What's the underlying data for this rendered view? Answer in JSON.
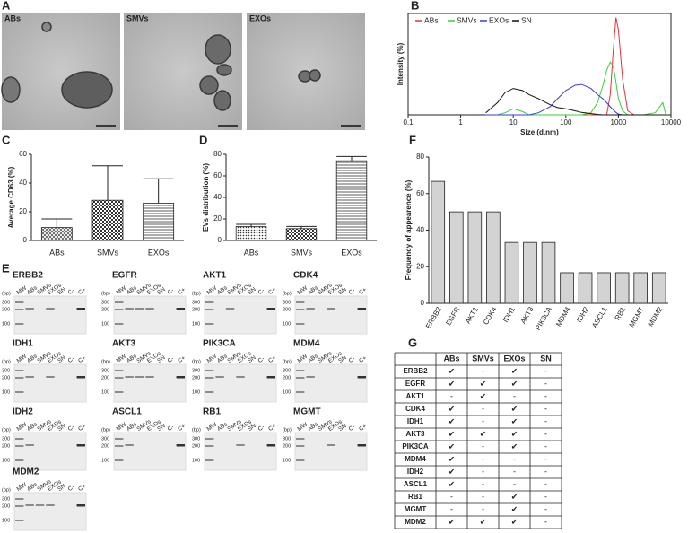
{
  "micrographs": {
    "panel": "A",
    "labels": [
      "ABs",
      "SMVs",
      "EXOs"
    ]
  },
  "chart_data": [
    {
      "panel": "B",
      "type": "line",
      "xlabel": "Size (d.nm)",
      "ylabel": "Intensity (%)",
      "log_x": true,
      "xlim": [
        0.1,
        10000
      ],
      "xticks": [
        0.1,
        1,
        10,
        100,
        1000,
        10000
      ],
      "ylim": [
        0,
        25
      ],
      "legend": "top",
      "x": [
        3,
        5,
        7,
        10,
        15,
        20,
        30,
        50,
        70,
        100,
        150,
        200,
        300,
        400,
        500,
        600,
        700,
        800,
        900,
        1000,
        1200,
        1500,
        2000,
        3000,
        5000,
        7000,
        8000
      ],
      "series": [
        {
          "name": "ABs",
          "color": "#e8303a",
          "values": [
            0,
            0,
            0,
            0,
            0,
            0,
            0,
            0,
            0,
            0,
            0,
            0,
            0,
            0,
            0,
            0,
            5,
            16,
            24,
            21,
            9,
            1,
            0,
            0,
            0,
            0,
            0
          ]
        },
        {
          "name": "SMVs",
          "color": "#35d035",
          "values": [
            0,
            0,
            0.5,
            1.5,
            0.8,
            0,
            0,
            0,
            0,
            0,
            0,
            0,
            0.5,
            3,
            7,
            11,
            13,
            12,
            8,
            4,
            1,
            0,
            0,
            0,
            0.5,
            3,
            0
          ]
        },
        {
          "name": "EXOs",
          "color": "#3a3ae0",
          "values": [
            0,
            0,
            0,
            0,
            0,
            0,
            0.5,
            2,
            4,
            6,
            7.3,
            7.5,
            6.5,
            5,
            4,
            3,
            2,
            1.2,
            0.6,
            0.2,
            0,
            0,
            0,
            0,
            0,
            0,
            0
          ]
        },
        {
          "name": "SN",
          "color": "#111111",
          "values": [
            0.5,
            3,
            5.5,
            6.5,
            6,
            5,
            4,
            2.5,
            1.8,
            1.5,
            1,
            0.6,
            0.3,
            0.1,
            0,
            0,
            0,
            0,
            0,
            0,
            0,
            0,
            0,
            0,
            0,
            0,
            0
          ]
        }
      ]
    },
    {
      "panel": "C",
      "type": "bar",
      "ylabel": "Average CD63 (%)",
      "categories": [
        "ABs",
        "SMVs",
        "EXOs"
      ],
      "values": [
        9,
        28,
        26
      ],
      "errors": [
        6,
        24,
        17
      ],
      "fills": [
        "cross",
        "check",
        "hlines"
      ],
      "ylim": [
        0,
        60
      ],
      "yticks": [
        0,
        20,
        40,
        60
      ]
    },
    {
      "panel": "D",
      "type": "bar",
      "ylabel": "EVs distribution (%)",
      "categories": [
        "ABs",
        "SMVs",
        "EXOs"
      ],
      "values": [
        13,
        11,
        74
      ],
      "errors": [
        2,
        2,
        4
      ],
      "fills": [
        "dots",
        "check",
        "hlines"
      ],
      "ylim": [
        0,
        80
      ],
      "yticks": [
        0,
        20,
        40,
        60,
        80
      ]
    },
    {
      "panel": "F",
      "type": "bar",
      "ylabel": "Frequency of appearence (%)",
      "categories": [
        "ERBB2",
        "EGFR",
        "AKT1",
        "CDK4",
        "IDH1",
        "AKT3",
        "PIK3CA",
        "MDM4",
        "IDH2",
        "ASCL1",
        "RB1",
        "MGMT",
        "MDM2"
      ],
      "values": [
        66.7,
        50,
        50,
        50,
        33.3,
        33.3,
        33.3,
        16.7,
        16.7,
        16.7,
        16.7,
        16.7,
        16.7
      ],
      "color": "#d3d3d3",
      "ylim": [
        0,
        80
      ],
      "yticks": [
        0,
        20,
        40,
        60,
        80
      ],
      "rotate_labels": true
    }
  ],
  "gels": {
    "panel": "E",
    "bp_label": "(bp)",
    "bp_ticks": [
      300,
      200,
      100
    ],
    "lanes": [
      "MW",
      "ABs",
      "SMVs",
      "EXOs",
      "SN",
      "C-",
      "C+"
    ],
    "genes": [
      "ERBB2",
      "EGFR",
      "AKT1",
      "CDK4",
      "IDH1",
      "AKT3",
      "PIK3CA",
      "MDM4",
      "IDH2",
      "ASCL1",
      "RB1",
      "MGMT",
      "MDM2"
    ]
  },
  "table": {
    "panel": "G",
    "header": [
      "ABs",
      "SMVs",
      "EXOs",
      "SN"
    ],
    "rows": [
      [
        "ERBB2",
        "✔",
        "-",
        "✔",
        "-"
      ],
      [
        "EGFR",
        "✔",
        "✔",
        "✔",
        "-"
      ],
      [
        "AKT1",
        "-",
        "✔",
        "-",
        "-"
      ],
      [
        "CDK4",
        "✔",
        "-",
        "✔",
        "-"
      ],
      [
        "IDH1",
        "✔",
        "-",
        "✔",
        "-"
      ],
      [
        "AKT3",
        "✔",
        "✔",
        "✔",
        "-"
      ],
      [
        "PIK3CA",
        "✔",
        "-",
        "✔",
        "-"
      ],
      [
        "MDM4",
        "✔",
        "-",
        "-",
        "-"
      ],
      [
        "IDH2",
        "✔",
        "-",
        "-",
        "-"
      ],
      [
        "ASCL1",
        "✔",
        "-",
        "-",
        "-"
      ],
      [
        "RB1",
        "-",
        "-",
        "✔",
        "-"
      ],
      [
        "MGMT",
        "-",
        "-",
        "✔",
        "-"
      ],
      [
        "MDM2",
        "✔",
        "✔",
        "✔",
        "-"
      ]
    ]
  }
}
